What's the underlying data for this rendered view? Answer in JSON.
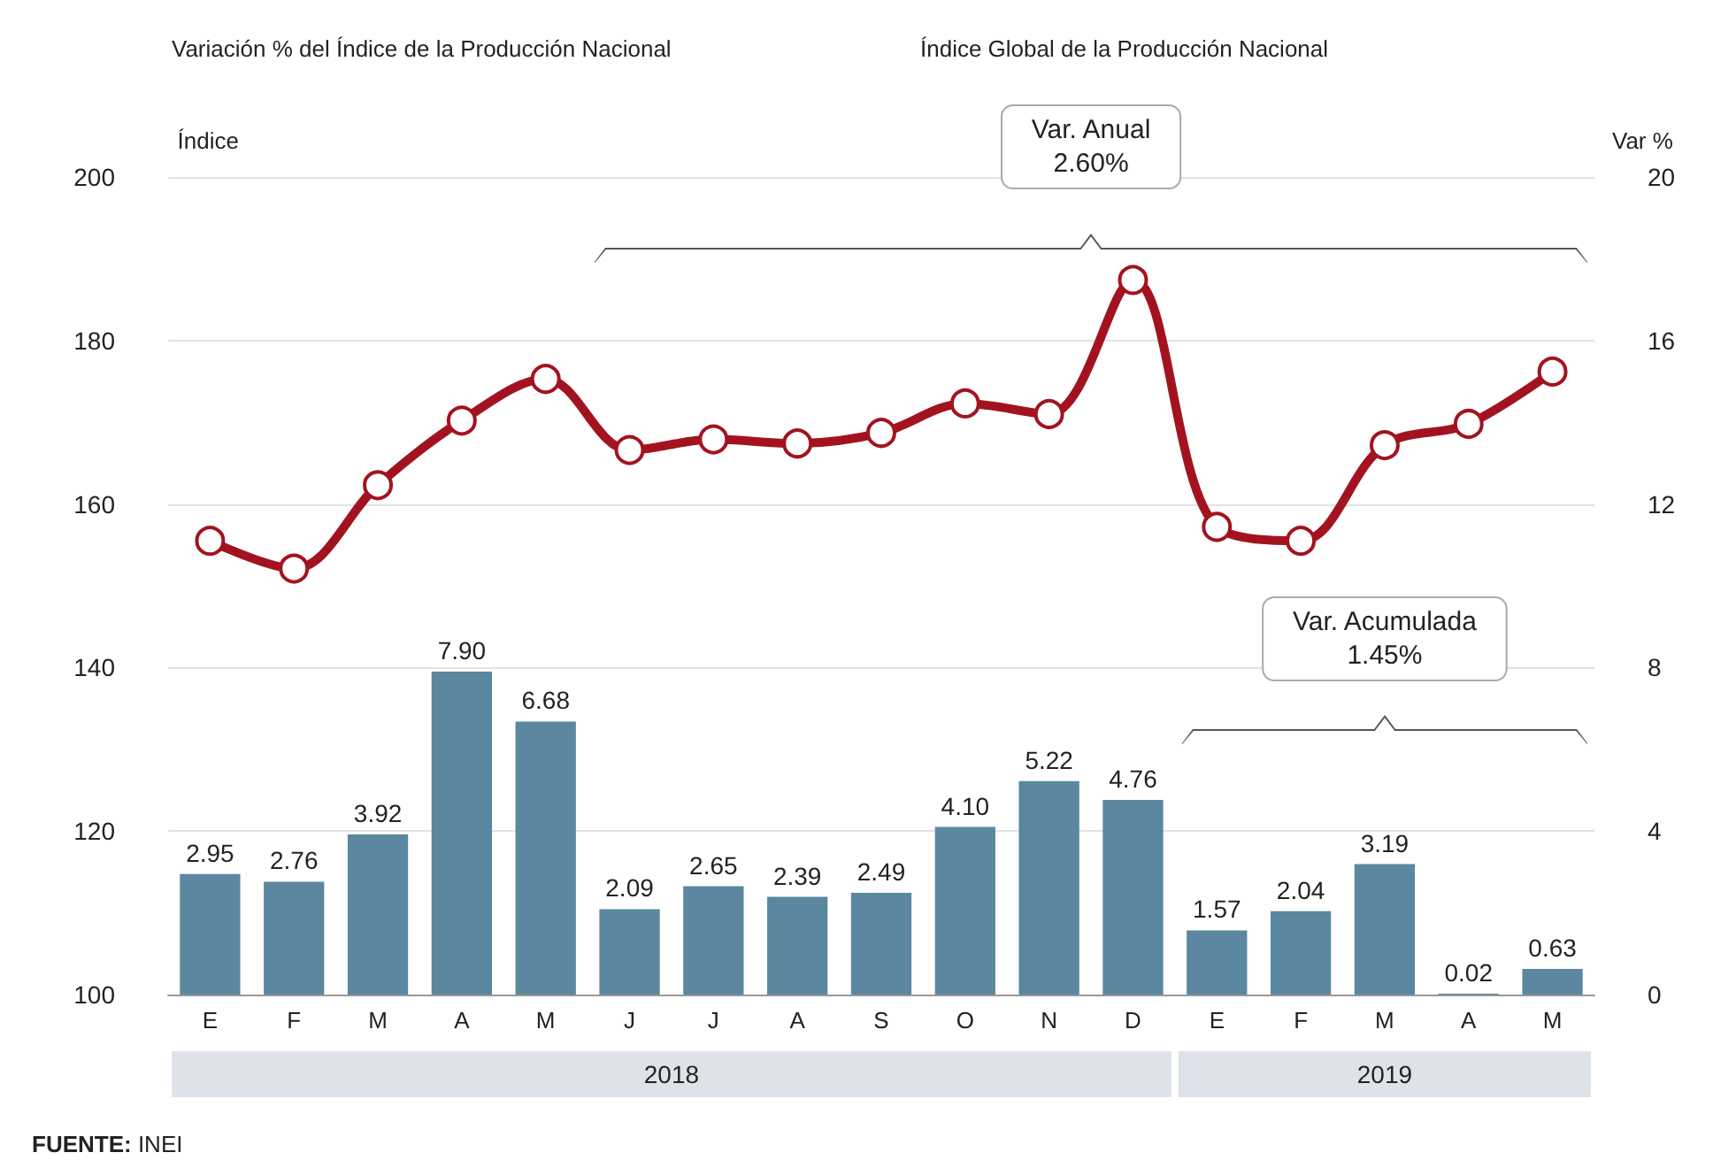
{
  "chart_data": {
    "type": "bar",
    "title": "Variación % del Índice de la Producción Nacional",
    "subtitle": "Índice Global de la Producción Nacional",
    "ylabel": "Índice",
    "y2label": "Var %",
    "categories": [
      "E",
      "F",
      "M",
      "A",
      "M",
      "J",
      "J",
      "A",
      "S",
      "O",
      "N",
      "D",
      "E",
      "F",
      "M",
      "A",
      "M"
    ],
    "series": [
      {
        "axis": "y2",
        "color": "#5b87a0",
        "values": [
          2.95,
          2.76,
          3.92,
          7.9,
          6.68,
          2.09,
          2.65,
          2.39,
          2.49,
          4.1,
          5.22,
          4.76,
          1.57,
          2.04,
          3.19,
          0.02,
          0.63
        ],
        "value_labels": [
          "2.95",
          "2.76",
          "3.92",
          "7.90",
          "6.68",
          "2.09",
          "2.65",
          "2.39",
          "2.49",
          "4.10",
          "5.22",
          "4.76",
          "1.57",
          "2.04",
          "3.19",
          "0.02",
          "0.63"
        ]
      },
      {
        "type": "line",
        "axis": "y",
        "color": "#a3131f",
        "marker": "circle",
        "values": [
          155.5,
          152.1,
          162.3,
          170.2,
          175.3,
          166.6,
          167.9,
          167.4,
          168.7,
          172.3,
          171.0,
          187.4,
          157.2,
          155.5,
          167.2,
          169.8,
          176.2
        ]
      }
    ],
    "ylim": [
      100,
      200
    ],
    "yticks": [
      100,
      120,
      140,
      160,
      180,
      200
    ],
    "y2lim": [
      0,
      20
    ],
    "y2ticks": [
      0,
      4,
      8,
      12,
      16,
      20
    ],
    "grid": "y",
    "annotations": [
      "Var. Anual\n2.60%",
      "Var. Acumulada\n1.45%",
      "2018",
      "2019",
      "FUENTE: INEI"
    ]
  }
}
